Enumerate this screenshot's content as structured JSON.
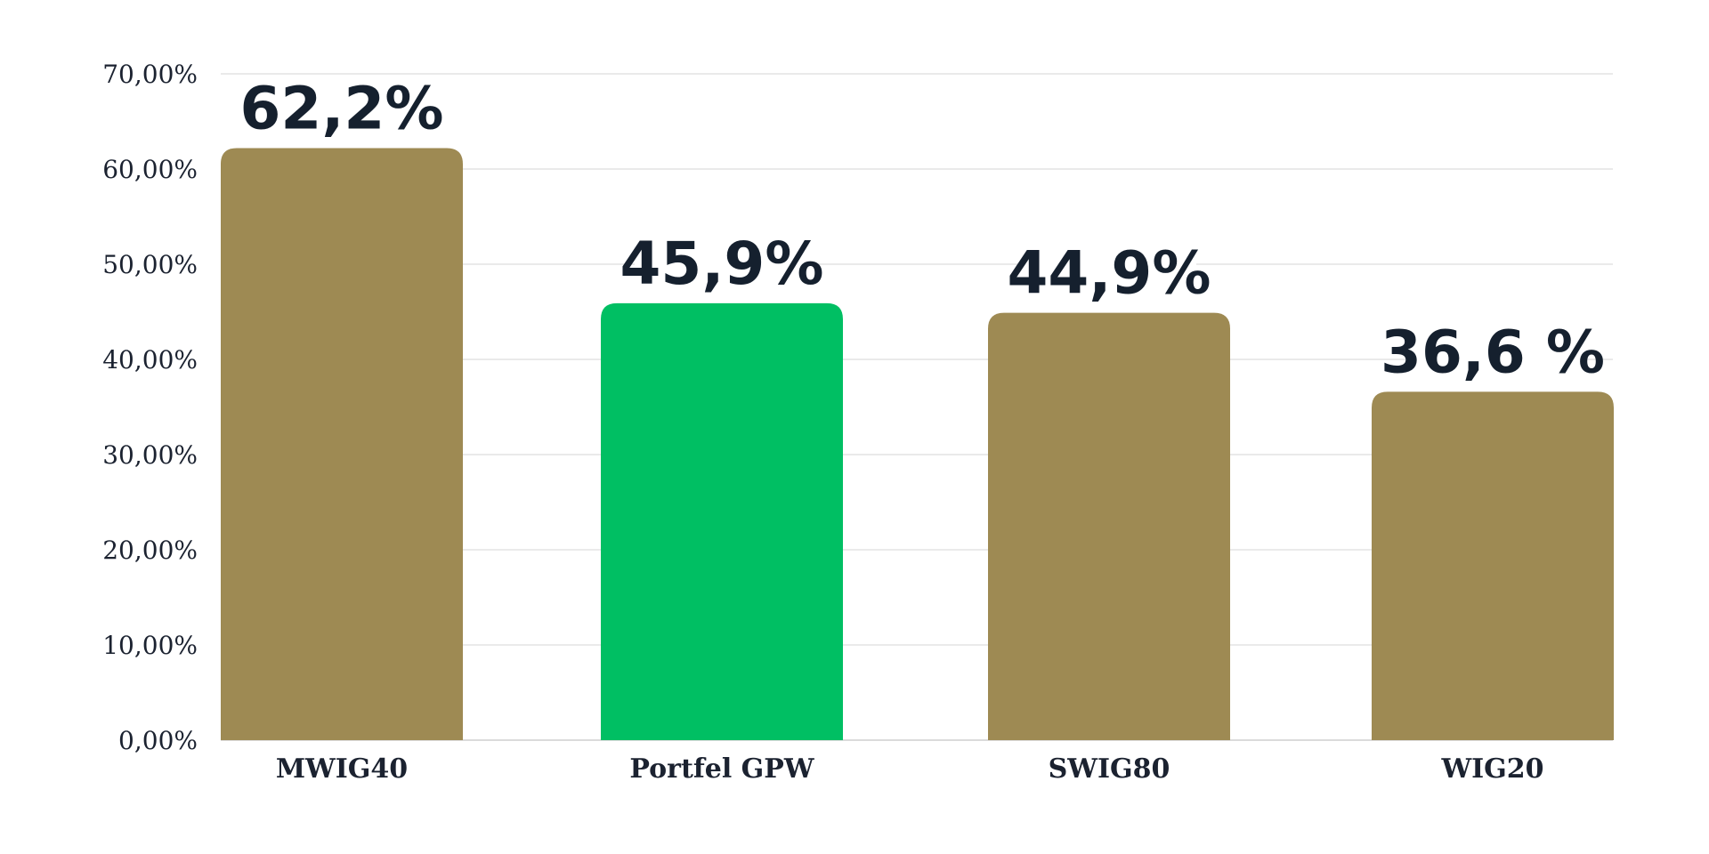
{
  "chart_data": {
    "type": "bar",
    "categories": [
      "MWIG40",
      "Portfel GPW",
      "SWIG80",
      "WIG20"
    ],
    "values": [
      62.2,
      45.9,
      44.9,
      36.6
    ],
    "value_labels": [
      "62,2%",
      "45,9%",
      "44,9%",
      "36,6 %"
    ],
    "bar_colors": [
      "#9e8a53",
      "#00bf63",
      "#9e8a53",
      "#9e8a53"
    ],
    "y_ticks": [
      0,
      10,
      20,
      30,
      40,
      50,
      60,
      70
    ],
    "y_tick_labels": [
      "0,00%",
      "10,00%",
      "20,00%",
      "30,00%",
      "40,00%",
      "50,00%",
      "60,00%",
      "70,00%"
    ],
    "ylim": [
      0,
      70
    ],
    "grid": true,
    "title": "",
    "xlabel": "",
    "ylabel": ""
  }
}
